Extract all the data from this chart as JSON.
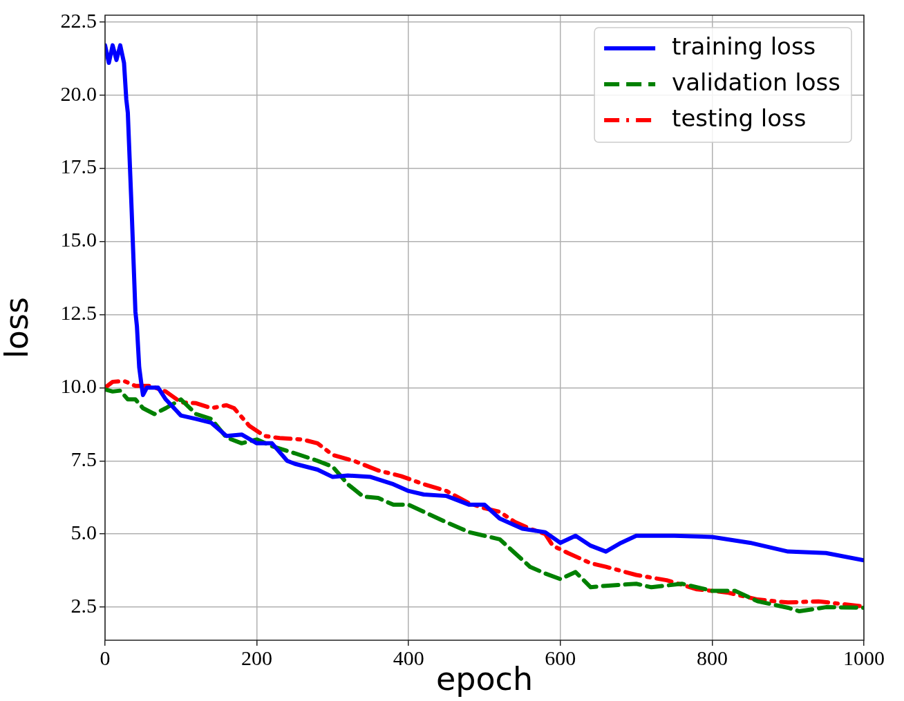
{
  "chart_data": {
    "type": "line",
    "xlabel": "epoch",
    "ylabel": "loss",
    "xlim": [
      0,
      1000
    ],
    "xticks": [
      0,
      200,
      400,
      600,
      800,
      1000
    ],
    "ylim": [
      1.37,
      22.73
    ],
    "yticks": [
      2.5,
      {
        "value": 5,
        "label": "5.0"
      },
      7.5,
      {
        "value": 10,
        "label": "10.0"
      },
      12.5,
      {
        "value": 15,
        "label": "15.0"
      },
      17.5,
      {
        "value": 20,
        "label": "20.0"
      },
      22.5
    ],
    "grid": true,
    "legend": "top right",
    "marker": "none",
    "series": [
      {
        "name": "training loss",
        "color": "#0000ff",
        "line_style": "solid",
        "x": [
          0,
          5,
          10,
          15,
          20,
          25,
          28,
          30,
          35,
          40,
          42,
          45,
          48,
          50,
          55,
          70,
          80,
          100,
          120,
          140,
          160,
          180,
          200,
          220,
          240,
          250,
          280,
          300,
          320,
          350,
          380,
          400,
          420,
          450,
          480,
          500,
          520,
          550,
          580,
          600,
          620,
          640,
          660,
          680,
          700,
          750,
          800,
          850,
          900,
          950,
          1000
        ],
        "values": [
          21.7,
          21.1,
          21.7,
          21.2,
          21.7,
          21.1,
          19.85,
          19.4,
          16.1,
          12.6,
          12.1,
          10.7,
          10.1,
          9.75,
          10.0,
          10.0,
          9.6,
          9.05,
          8.93,
          8.8,
          8.35,
          8.4,
          8.1,
          8.1,
          7.5,
          7.4,
          7.2,
          6.95,
          7.0,
          6.95,
          6.7,
          6.47,
          6.35,
          6.3,
          6.0,
          6.0,
          5.53,
          5.18,
          5.06,
          4.7,
          4.94,
          4.6,
          4.4,
          4.7,
          4.94,
          4.94,
          4.9,
          4.7,
          4.4,
          4.35,
          4.1
        ]
      },
      {
        "name": "validation loss",
        "color": "#008000",
        "line_style": "dashed",
        "x": [
          0,
          10,
          20,
          30,
          40,
          50,
          65,
          80,
          100,
          120,
          140,
          160,
          180,
          200,
          220,
          250,
          280,
          300,
          320,
          340,
          360,
          380,
          400,
          420,
          450,
          480,
          500,
          520,
          540,
          560,
          580,
          600,
          620,
          640,
          660,
          700,
          720,
          760,
          800,
          830,
          860,
          900,
          915,
          950,
          1000
        ],
        "values": [
          9.94,
          9.87,
          9.9,
          9.6,
          9.6,
          9.3,
          9.1,
          9.3,
          9.6,
          9.1,
          8.93,
          8.3,
          8.1,
          8.23,
          8.0,
          7.76,
          7.5,
          7.3,
          6.7,
          6.28,
          6.23,
          6.0,
          6.0,
          5.76,
          5.4,
          5.06,
          4.94,
          4.82,
          4.35,
          3.88,
          3.65,
          3.46,
          3.7,
          3.18,
          3.23,
          3.3,
          3.18,
          3.3,
          3.06,
          3.06,
          2.7,
          2.48,
          2.36,
          2.5,
          2.48
        ]
      },
      {
        "name": "testing loss",
        "color": "#ff0000",
        "line_style": "dashdot",
        "x": [
          0,
          10,
          25,
          40,
          60,
          80,
          100,
          120,
          140,
          160,
          170,
          190,
          210,
          230,
          260,
          280,
          300,
          330,
          360,
          390,
          420,
          450,
          480,
          500,
          520,
          540,
          560,
          580,
          590,
          610,
          640,
          660,
          700,
          740,
          780,
          820,
          860,
          900,
          940,
          1000
        ],
        "values": [
          10.0,
          10.2,
          10.23,
          10.06,
          10.06,
          9.87,
          9.5,
          9.47,
          9.3,
          9.4,
          9.3,
          8.7,
          8.35,
          8.28,
          8.23,
          8.1,
          7.7,
          7.48,
          7.17,
          6.98,
          6.7,
          6.47,
          6.05,
          5.88,
          5.76,
          5.41,
          5.18,
          5.0,
          4.6,
          4.35,
          4.0,
          3.88,
          3.6,
          3.42,
          3.11,
          3.0,
          2.76,
          2.66,
          2.7,
          2.52
        ]
      }
    ]
  }
}
